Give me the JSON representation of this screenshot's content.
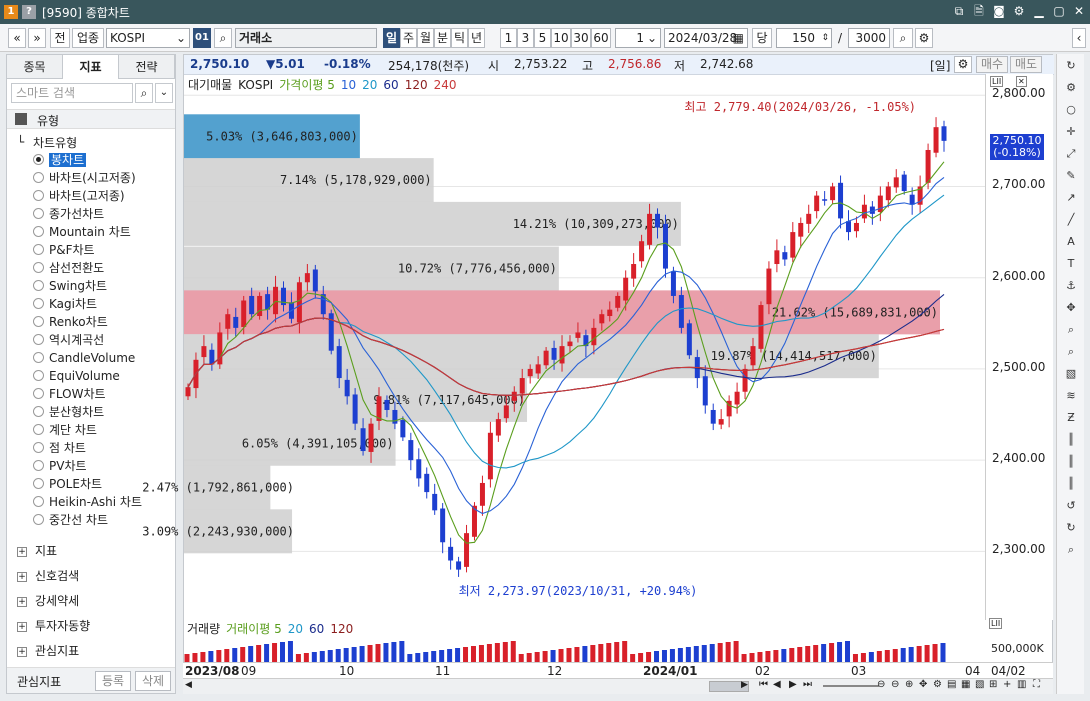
{
  "window": {
    "badge1": "1",
    "badge2": "?",
    "title": "[9590] 종합차트"
  },
  "toolbar": {
    "nav_left": "«",
    "nav_down": "»",
    "btn_all": "전",
    "btn_sector": "업종",
    "code_value": "KOSPI",
    "code_number": "01",
    "market_name": "거래소",
    "periods": [
      "일",
      "주",
      "월",
      "분",
      "틱",
      "년"
    ],
    "selected_period": "일",
    "intervals": [
      "1",
      "3",
      "5",
      "10",
      "30",
      "60"
    ],
    "interval_input": "1",
    "date_value": "2024/03/28",
    "btn_dang": "당",
    "count_value": "150",
    "slash": "/",
    "max_count": "3000"
  },
  "left_panel": {
    "tabs": [
      "종목",
      "지표",
      "전략"
    ],
    "active_tab": "지표",
    "search_placeholder": "스마트 검색",
    "section_title": "유형",
    "tree_title": "차트유형",
    "chart_types": [
      "봉차트",
      "바차트(시고저종)",
      "바차트(고저종)",
      "종가선차트",
      "Mountain 차트",
      "P&F차트",
      "삼선전환도",
      "Swing차트",
      "Kagi차트",
      "Renko차트",
      "역시계곡선",
      "CandleVolume",
      "EquiVolume",
      "FLOW차트",
      "분산형차트",
      "계단 차트",
      "점 차트",
      "PV차트",
      "POLE차트",
      "Heikin-Ashi 차트",
      "중간선 차트"
    ],
    "selected_type": "봉차트",
    "groups": [
      "지표",
      "신호검색",
      "강세약세",
      "투자자동향",
      "관심지표"
    ],
    "footer_label": "관심지표",
    "footer_register": "등록",
    "footer_delete": "삭제"
  },
  "pricebar": {
    "last": "2,750.10",
    "change": "▼5.01",
    "change_pct": "-0.18%",
    "volume": "254,178(천주)",
    "open_label": "시",
    "open": "2,753.22",
    "high_label": "고",
    "high": "2,756.86",
    "low_label": "저",
    "low": "2,742.68",
    "period_tag": "[일]",
    "buy": "매수",
    "sell": "매도"
  },
  "legend": {
    "items": [
      "대기매물",
      "KOSPI",
      "가격이평 5",
      "10",
      "20",
      "60",
      "120",
      "240"
    ],
    "colors": [
      "#222222",
      "#222222",
      "#5a9e1d",
      "#2a62d6",
      "#1f97c8",
      "#1b2c8c",
      "#8b1e1e",
      "#c83a3a"
    ]
  },
  "annotations": {
    "high": "최고 2,779.40(2024/03/26, -1.05%)",
    "low": "최저 2,273.97(2023/10/31, +20.94%)"
  },
  "price_axis": {
    "ticks": [
      "2,800.00",
      "2,700.00",
      "2,600.00",
      "2,500.00",
      "2,400.00",
      "2,300.00"
    ],
    "current": "2,750.10",
    "current_pct": "(-0.18%)"
  },
  "volume_profile": [
    {
      "label": "5.03% (3,646,803,000)",
      "pct": 5.03,
      "price": 2755,
      "highlight": "blue"
    },
    {
      "label": "7.14% (5,178,929,000)",
      "pct": 7.14,
      "price": 2707
    },
    {
      "label": "14.21% (10,309,273,000)",
      "pct": 14.21,
      "price": 2659
    },
    {
      "label": "10.72% (7,776,456,000)",
      "pct": 10.72,
      "price": 2610
    },
    {
      "label": "21.62% (15,689,831,000)",
      "pct": 21.62,
      "price": 2562,
      "highlight": "red"
    },
    {
      "label": "19.87% (14,414,517,000)",
      "pct": 19.87,
      "price": 2514
    },
    {
      "label": "9.81% (7,117,645,000)",
      "pct": 9.81,
      "price": 2466
    },
    {
      "label": "6.05% (4,391,105,000)",
      "pct": 6.05,
      "price": 2418
    },
    {
      "label": "2.47% (1,792,861,000)",
      "pct": 2.47,
      "price": 2370
    },
    {
      "label": "3.09% (2,243,930,000)",
      "pct": 3.09,
      "price": 2322
    }
  ],
  "volume_legend": {
    "items": [
      "거래량",
      "거래이평 5",
      "20",
      "60",
      "120"
    ],
    "axis_label": "500,000K"
  },
  "x_axis": {
    "labels": [
      "2023/08",
      "09",
      "10",
      "11",
      "12",
      "2024/01",
      "02",
      "03",
      "04"
    ],
    "date_end": "04/02"
  },
  "chart_data": {
    "type": "candlestick",
    "ylim": [
      2250,
      2820
    ],
    "closes": [
      2480,
      2510,
      2525,
      2505,
      2540,
      2560,
      2545,
      2575,
      2560,
      2580,
      2565,
      2590,
      2570,
      2555,
      2595,
      2605,
      2585,
      2560,
      2520,
      2490,
      2470,
      2440,
      2410,
      2440,
      2470,
      2455,
      2440,
      2425,
      2400,
      2380,
      2365,
      2345,
      2310,
      2290,
      2280,
      2320,
      2350,
      2375,
      2430,
      2445,
      2460,
      2475,
      2490,
      2500,
      2505,
      2520,
      2510,
      2525,
      2530,
      2540,
      2525,
      2545,
      2560,
      2565,
      2580,
      2600,
      2615,
      2640,
      2670,
      2655,
      2610,
      2580,
      2545,
      2515,
      2490,
      2460,
      2440,
      2445,
      2465,
      2475,
      2500,
      2525,
      2570,
      2610,
      2630,
      2620,
      2650,
      2660,
      2670,
      2690,
      2685,
      2700,
      2665,
      2650,
      2660,
      2680,
      2670,
      2690,
      2700,
      2710,
      2695,
      2680,
      2700,
      2740,
      2765,
      2750
    ]
  }
}
